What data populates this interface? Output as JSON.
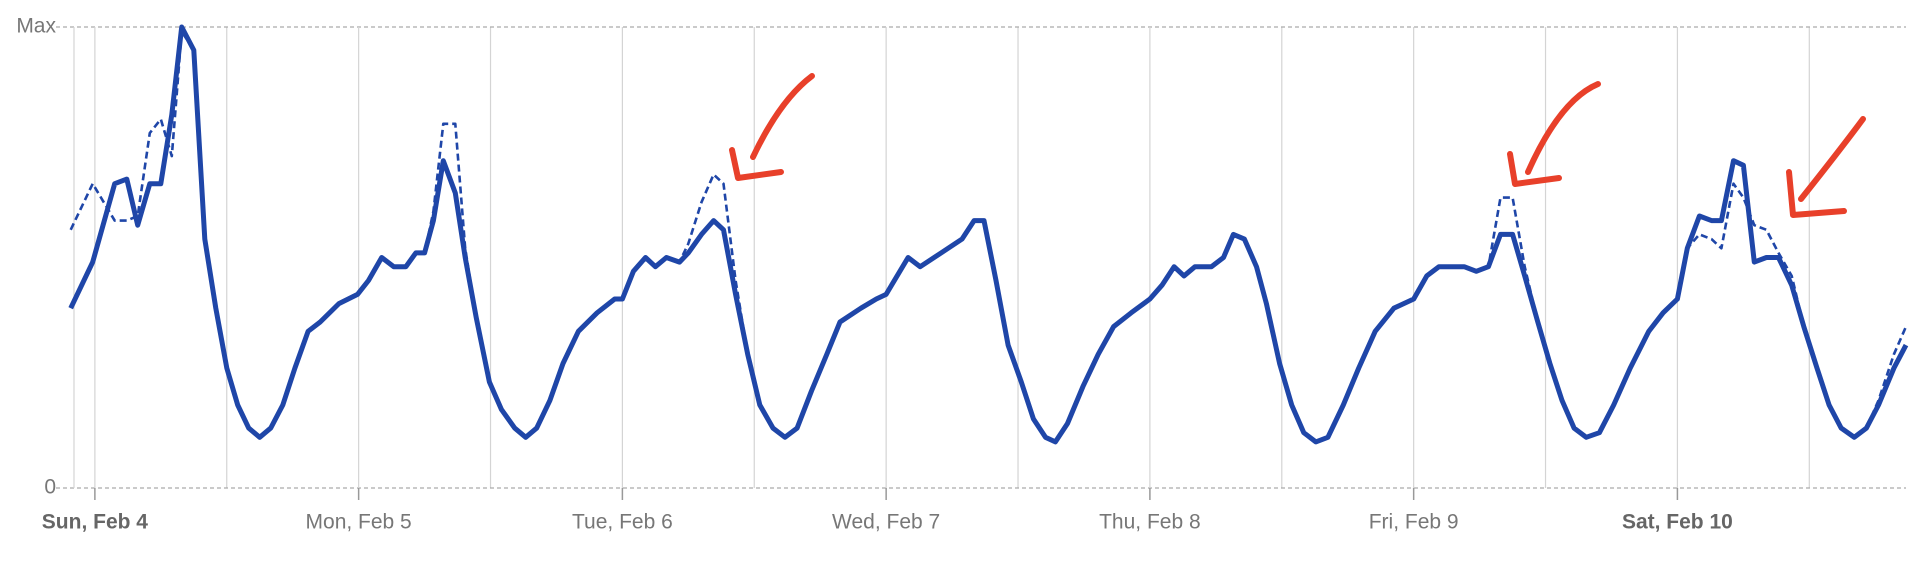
{
  "chart_data": {
    "type": "line",
    "x": [
      -2.2,
      -0.2,
      1.8,
      2.9,
      3.9,
      5.0,
      6.0,
      7.0,
      7.9,
      9.0,
      10.0,
      11.0,
      12.0,
      13.0,
      14.0,
      15.0,
      16.0,
      17.1,
      18.2,
      19.4,
      20.5,
      22.2,
      23.9,
      24.9,
      26.1,
      27.2,
      28.3,
      29.2,
      30.0,
      30.8,
      31.7,
      32.8,
      33.7,
      34.7,
      35.9,
      37.0,
      38.2,
      39.2,
      40.2,
      41.4,
      42.6,
      44.0,
      45.7,
      47.3,
      48.0,
      49.0,
      50.1,
      51.0,
      52.0,
      53.2,
      54.0,
      55.2,
      56.3,
      57.2,
      58.3,
      59.4,
      60.5,
      61.7,
      62.8,
      63.9,
      65.2,
      66.6,
      67.8,
      69.7,
      71.1,
      72.0,
      74.0,
      75.1,
      77.0,
      78.9,
      80.0,
      80.9,
      82.0,
      83.1,
      84.3,
      85.4,
      86.5,
      87.4,
      88.5,
      89.9,
      91.3,
      92.7,
      94.3,
      96.0,
      97.1,
      98.2,
      99.1,
      100.1,
      101.6,
      102.7,
      103.6,
      104.6,
      105.7,
      106.6,
      107.8,
      108.9,
      110.0,
      111.1,
      112.2,
      113.6,
      115.0,
      116.5,
      118.2,
      120.0,
      121.2,
      122.3,
      123.4,
      124.6,
      125.7,
      126.8,
      127.9,
      129.0,
      130.1,
      131.3,
      132.4,
      133.5,
      134.6,
      135.7,
      136.9,
      138.2,
      139.7,
      141.4,
      142.7,
      144.0,
      144.9,
      146.0,
      147.1,
      148.0,
      149.1,
      150.0,
      151.0,
      152.1,
      153.2,
      154.4,
      155.5,
      156.7,
      157.8,
      158.9,
      160.1,
      161.2,
      162.3,
      163.7,
      164.8
    ],
    "series": [
      {
        "color": "#1f46a8",
        "style": "solid",
        "values": [
          39,
          49,
          66,
          67,
          57,
          66,
          66,
          81,
          100,
          95,
          54,
          39,
          26,
          18,
          13,
          11,
          13,
          18,
          26,
          34,
          36,
          40,
          42,
          45,
          50,
          48,
          48,
          51,
          51,
          58,
          71,
          64,
          50,
          37,
          23,
          17,
          13,
          11,
          13,
          19,
          27,
          34,
          38,
          41,
          41,
          47,
          50,
          48,
          50,
          49,
          51,
          55,
          58,
          56,
          42,
          29,
          18,
          13,
          11,
          13,
          21,
          29,
          36,
          39,
          41,
          42,
          50,
          48,
          51,
          54,
          58,
          58,
          45,
          31,
          23,
          15,
          11,
          10,
          14,
          22,
          29,
          35,
          38,
          41,
          44,
          48,
          46,
          48,
          48,
          50,
          55,
          54,
          48,
          40,
          27,
          18,
          12,
          10,
          11,
          18,
          26,
          34,
          39,
          41,
          46,
          48,
          48,
          48,
          47,
          48,
          55,
          55,
          46,
          36,
          27,
          19,
          13,
          11,
          12,
          18,
          26,
          34,
          38,
          41,
          52,
          59,
          58,
          58,
          71,
          70,
          49,
          50,
          50,
          44,
          35,
          26,
          18,
          13,
          11,
          13,
          18,
          26,
          31
        ]
      },
      {
        "color": "#1f46a8",
        "style": "dashed",
        "values": [
          56,
          66,
          58,
          58,
          59,
          77,
          80,
          72,
          99,
          95,
          54,
          39,
          26,
          18,
          13,
          11,
          13,
          18,
          26,
          34,
          36,
          40,
          42,
          45,
          50,
          48,
          48,
          51,
          51,
          60,
          79,
          79,
          52,
          37,
          23,
          17,
          13,
          11,
          13,
          19,
          27,
          34,
          38,
          41,
          41,
          47,
          50,
          48,
          50,
          49,
          53,
          62,
          68,
          66,
          45,
          29,
          18,
          13,
          11,
          13,
          21,
          29,
          36,
          39,
          41,
          42,
          50,
          48,
          51,
          54,
          58,
          58,
          45,
          31,
          23,
          15,
          11,
          10,
          14,
          22,
          29,
          35,
          38,
          41,
          44,
          48,
          46,
          48,
          48,
          50,
          55,
          54,
          48,
          40,
          27,
          18,
          12,
          10,
          11,
          18,
          26,
          34,
          39,
          41,
          46,
          48,
          48,
          48,
          47,
          48,
          63,
          63,
          48,
          36,
          27,
          19,
          13,
          11,
          12,
          18,
          26,
          34,
          38,
          41,
          52,
          55,
          54,
          52,
          66,
          63,
          57,
          56,
          51,
          46,
          35,
          26,
          18,
          13,
          11,
          13,
          19,
          29,
          35
        ]
      }
    ],
    "xlim": [
      -1.9,
      164.8
    ],
    "xticks": [
      {
        "value": 0,
        "label": "Sun, Feb 4"
      },
      {
        "value": 24,
        "label": "Mon, Feb 5"
      },
      {
        "value": 48,
        "label": "Tue, Feb 6"
      },
      {
        "value": 72,
        "label": "Wed, Feb 7"
      },
      {
        "value": 96,
        "label": "Thu, Feb 8"
      },
      {
        "value": 120,
        "label": "Fri, Feb 9"
      },
      {
        "value": 144,
        "label": "Sat, Feb 10"
      }
    ],
    "x_minor_ticks": [
      12,
      36,
      60,
      84,
      108,
      132,
      156
    ],
    "bold_xticks": [
      0,
      6
    ],
    "ylim": [
      0,
      100
    ],
    "yticks": [
      0,
      {
        "value": 100,
        "label": "Max"
      }
    ],
    "grid": true
  }
}
